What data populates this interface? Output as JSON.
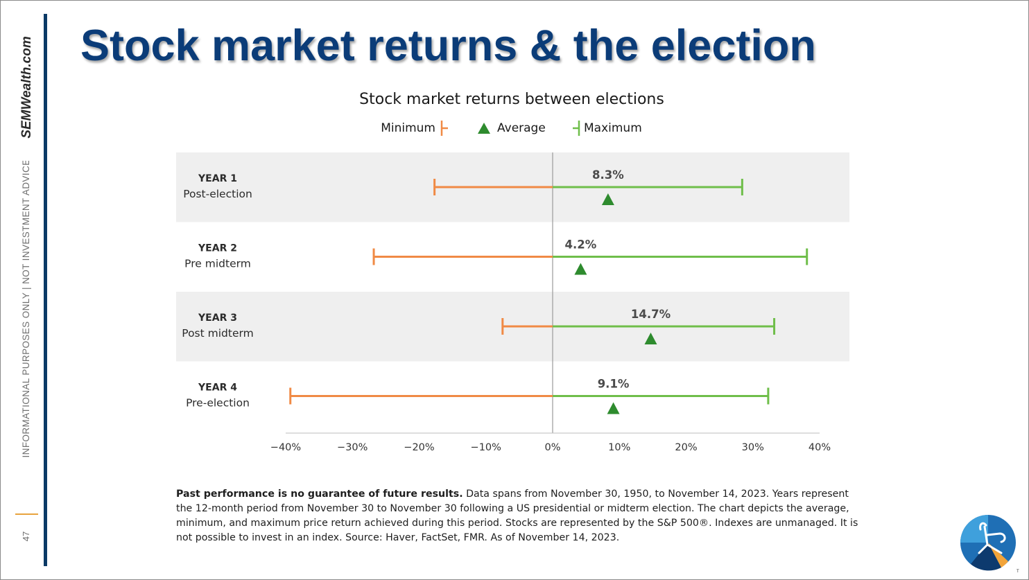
{
  "slide": {
    "title": "Stock market returns & the election",
    "brand": "SEMWealth.com",
    "side_disclaimer": "INFORMATIONAL PURPOSES ONLY | NOT INVESTMENT ADVICE",
    "page_number": "47",
    "logo_tm": "TM"
  },
  "footnote": {
    "bold": "Past performance is no guarantee of future results.",
    "text": " Data spans from November 30, 1950, to November 14, 2023. Years represent the 12-month period from November 30 to November 30 following a US presidential or midterm election. The chart depicts the average, minimum, and maximum price return achieved during this period. Stocks are represented by the S&P 500®. Indexes are unmanaged. It is not possible to invest in an index. Source: Haver, FactSet, FMR. As of November 14, 2023."
  },
  "colors": {
    "title": "#0b3c78",
    "minimum": "#f08a45",
    "maximum": "#6fbe4a",
    "average": "#2e8b2e",
    "band": "#efefef"
  },
  "chart_data": {
    "type": "range-dot",
    "title": "Stock market returns between elections",
    "legend": [
      "Minimum",
      "Average",
      "Maximum"
    ],
    "legend_position": "top-center",
    "xlim": [
      -40,
      40
    ],
    "xticks": [
      -40,
      -30,
      -20,
      -10,
      0,
      10,
      20,
      30,
      40
    ],
    "xtick_labels": [
      "−40%",
      "−30%",
      "−20%",
      "−10%",
      "0%",
      "10%",
      "20%",
      "30%",
      "40%"
    ],
    "categories": [
      {
        "year": "YEAR 1",
        "phase": "Post-election",
        "min": -17.7,
        "avg": 8.3,
        "max": 28.4,
        "avg_label": "8.3%"
      },
      {
        "year": "YEAR 2",
        "phase": "Pre midterm",
        "min": -26.8,
        "avg": 4.2,
        "max": 38.1,
        "avg_label": "4.2%"
      },
      {
        "year": "YEAR 3",
        "phase": "Post midterm",
        "min": -7.5,
        "avg": 14.7,
        "max": 33.2,
        "avg_label": "14.7%"
      },
      {
        "year": "YEAR 4",
        "phase": "Pre-election",
        "min": -39.3,
        "avg": 9.1,
        "max": 32.3,
        "avg_label": "9.1%"
      }
    ]
  }
}
